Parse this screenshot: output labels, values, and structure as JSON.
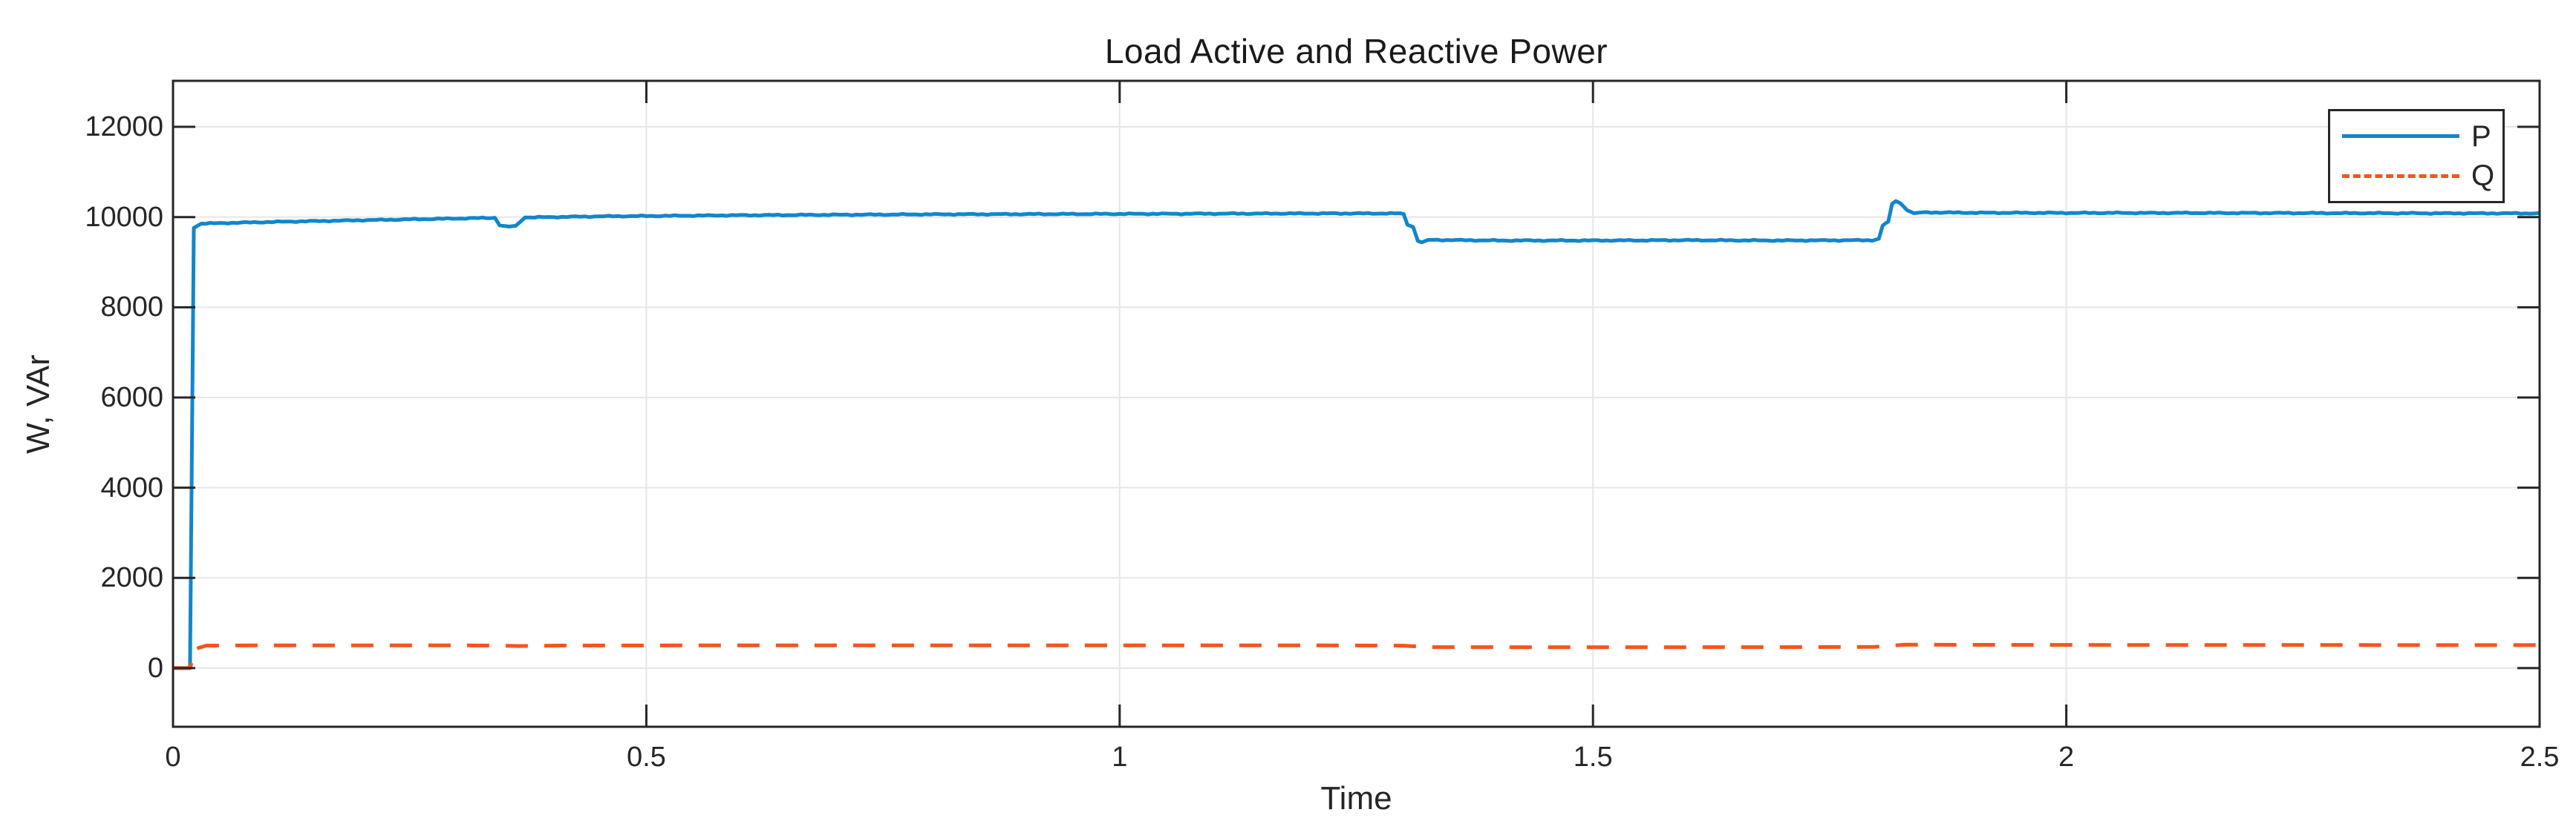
{
  "figure": {
    "background": "#ffffff"
  },
  "chart_data": {
    "type": "line",
    "title": "Load Active and Reactive Power",
    "xlabel": "Time",
    "ylabel": "W, VAr",
    "xlim": [
      0,
      2.5
    ],
    "ylim": [
      -1300,
      13020
    ],
    "xtick_values": [
      0,
      0.5,
      1,
      1.5,
      2,
      2.5
    ],
    "xtick_labels": [
      "0",
      "0.5",
      "1",
      "1.5",
      "2",
      "2.5"
    ],
    "ytick_values": [
      0,
      2000,
      4000,
      6000,
      8000,
      10000,
      12000
    ],
    "ytick_labels": [
      "0",
      "2000",
      "4000",
      "6000",
      "8000",
      "10000",
      "12000"
    ],
    "grid": true,
    "legend_position": "top-right",
    "axis_color": "#262626",
    "grid_color": "#e6e6e6",
    "background_color": "#ffffff",
    "series": [
      {
        "name": "P",
        "color": "#1286cb",
        "style": "solid",
        "width": 5,
        "dash": [],
        "noise": 14,
        "points": [
          [
            0,
            0
          ],
          [
            0.018,
            0
          ],
          [
            0.022,
            9760
          ],
          [
            0.03,
            9855
          ],
          [
            0.1,
            9890
          ],
          [
            0.2,
            9930
          ],
          [
            0.3,
            9968
          ],
          [
            0.34,
            9985
          ],
          [
            0.345,
            9815
          ],
          [
            0.355,
            9790
          ],
          [
            0.362,
            9805
          ],
          [
            0.372,
            9990
          ],
          [
            0.45,
            10015
          ],
          [
            0.6,
            10040
          ],
          [
            0.8,
            10060
          ],
          [
            1.0,
            10070
          ],
          [
            1.2,
            10080
          ],
          [
            1.296,
            10080
          ],
          [
            1.3,
            10070
          ],
          [
            1.304,
            9830
          ],
          [
            1.31,
            9780
          ],
          [
            1.315,
            9470
          ],
          [
            1.319,
            9440
          ],
          [
            1.326,
            9495
          ],
          [
            1.4,
            9480
          ],
          [
            1.5,
            9480
          ],
          [
            1.6,
            9487
          ],
          [
            1.7,
            9480
          ],
          [
            1.795,
            9487
          ],
          [
            1.802,
            9520
          ],
          [
            1.806,
            9810
          ],
          [
            1.809,
            9860
          ],
          [
            1.812,
            9900
          ],
          [
            1.816,
            10290
          ],
          [
            1.82,
            10355
          ],
          [
            1.825,
            10300
          ],
          [
            1.832,
            10150
          ],
          [
            1.839,
            10085
          ],
          [
            1.848,
            10105
          ],
          [
            1.9,
            10095
          ],
          [
            2.0,
            10092
          ],
          [
            2.2,
            10090
          ],
          [
            2.35,
            10085
          ],
          [
            2.5,
            10082
          ]
        ]
      },
      {
        "name": "Q",
        "color": "#f4551d",
        "style": "dashed",
        "width": 5,
        "dash": [
          30,
          22
        ],
        "noise": 0,
        "points": [
          [
            0,
            0
          ],
          [
            0.018,
            0
          ],
          [
            0.024,
            430
          ],
          [
            0.035,
            498
          ],
          [
            0.1,
            505
          ],
          [
            0.3,
            505
          ],
          [
            0.345,
            498
          ],
          [
            0.365,
            490
          ],
          [
            0.41,
            500
          ],
          [
            0.6,
            505
          ],
          [
            0.9,
            505
          ],
          [
            1.2,
            505
          ],
          [
            1.3,
            498
          ],
          [
            1.325,
            465
          ],
          [
            1.5,
            462
          ],
          [
            1.7,
            466
          ],
          [
            1.798,
            470
          ],
          [
            1.83,
            520
          ],
          [
            1.9,
            516
          ],
          [
            2.1,
            512
          ],
          [
            2.3,
            511
          ],
          [
            2.5,
            510
          ]
        ]
      }
    ],
    "layout": {
      "plot_left": 233,
      "plot_top": 109,
      "plot_right": 3420,
      "plot_bottom": 980,
      "tick_length": 30
    }
  }
}
